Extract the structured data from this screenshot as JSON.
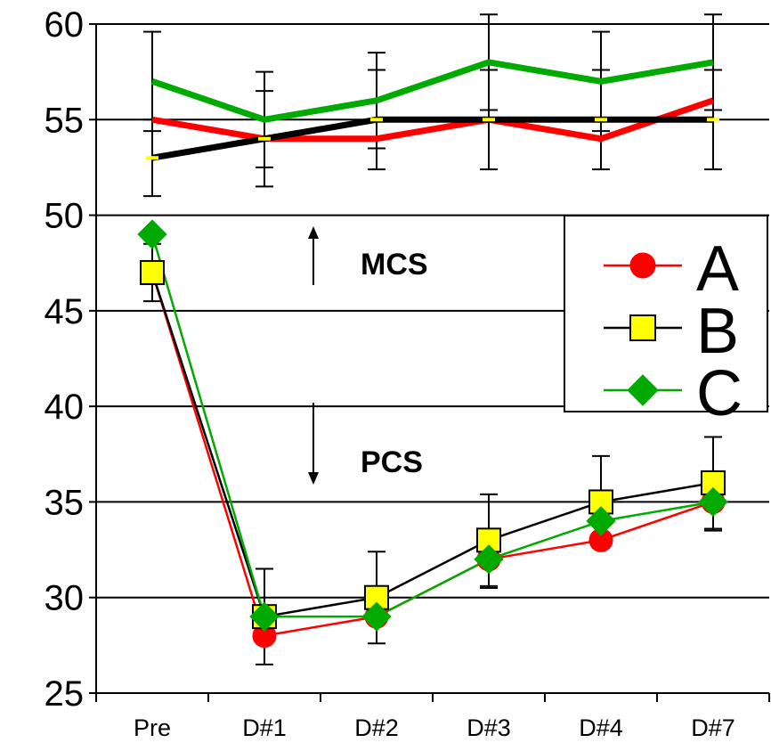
{
  "chart_data": {
    "type": "line",
    "categories": [
      "Pre",
      "D#1",
      "D#2",
      "D#3",
      "D#4",
      "D#7"
    ],
    "ylim": [
      25,
      60
    ],
    "yticks": [
      25,
      30,
      35,
      40,
      45,
      50,
      55,
      60
    ],
    "grid": true,
    "legend_position": "right",
    "annotations": [
      {
        "label": "MCS",
        "arrow": "up"
      },
      {
        "label": "PCS",
        "arrow": "down"
      }
    ],
    "series": [
      {
        "name": "A",
        "group": "MCS",
        "color": "#ff0000",
        "values": [
          55,
          54,
          54,
          55,
          54,
          56
        ],
        "error": [
          null,
          null,
          null,
          null,
          null,
          null
        ]
      },
      {
        "name": "B",
        "group": "MCS",
        "color": "#000000",
        "values": [
          53,
          54,
          55,
          55,
          55,
          55
        ],
        "error": [
          2,
          2.5,
          2.6,
          2.6,
          2.6,
          2.6
        ]
      },
      {
        "name": "C",
        "group": "MCS",
        "color": "#00aa00",
        "values": [
          57,
          55,
          56,
          58,
          57,
          58
        ],
        "error": [
          2.6,
          2.5,
          2.5,
          2.5,
          2.6,
          2.5
        ]
      },
      {
        "name": "A",
        "group": "PCS",
        "color": "#ff0000",
        "marker": "circle",
        "values": [
          47,
          28,
          29,
          32,
          33,
          35
        ],
        "error": [
          null,
          null,
          null,
          null,
          null,
          null
        ]
      },
      {
        "name": "B",
        "group": "PCS",
        "color": "#000000",
        "marker": "square",
        "values": [
          47,
          29,
          30,
          33,
          35,
          36
        ],
        "error": [
          1.5,
          2.5,
          2.4,
          2.4,
          2.4,
          2.4
        ]
      },
      {
        "name": "C",
        "group": "PCS",
        "color": "#00aa00",
        "marker": "diamond",
        "values": [
          49,
          29,
          29,
          32,
          34,
          35
        ],
        "error": [
          null,
          null,
          null,
          1.5,
          null,
          1.5
        ]
      }
    ],
    "legend": [
      {
        "label": "A",
        "color": "#ff0000",
        "marker": "circle"
      },
      {
        "label": "B",
        "color": "#000000",
        "marker": "square",
        "fill": "#ffff00"
      },
      {
        "label": "C",
        "color": "#00aa00",
        "marker": "diamond"
      }
    ]
  }
}
